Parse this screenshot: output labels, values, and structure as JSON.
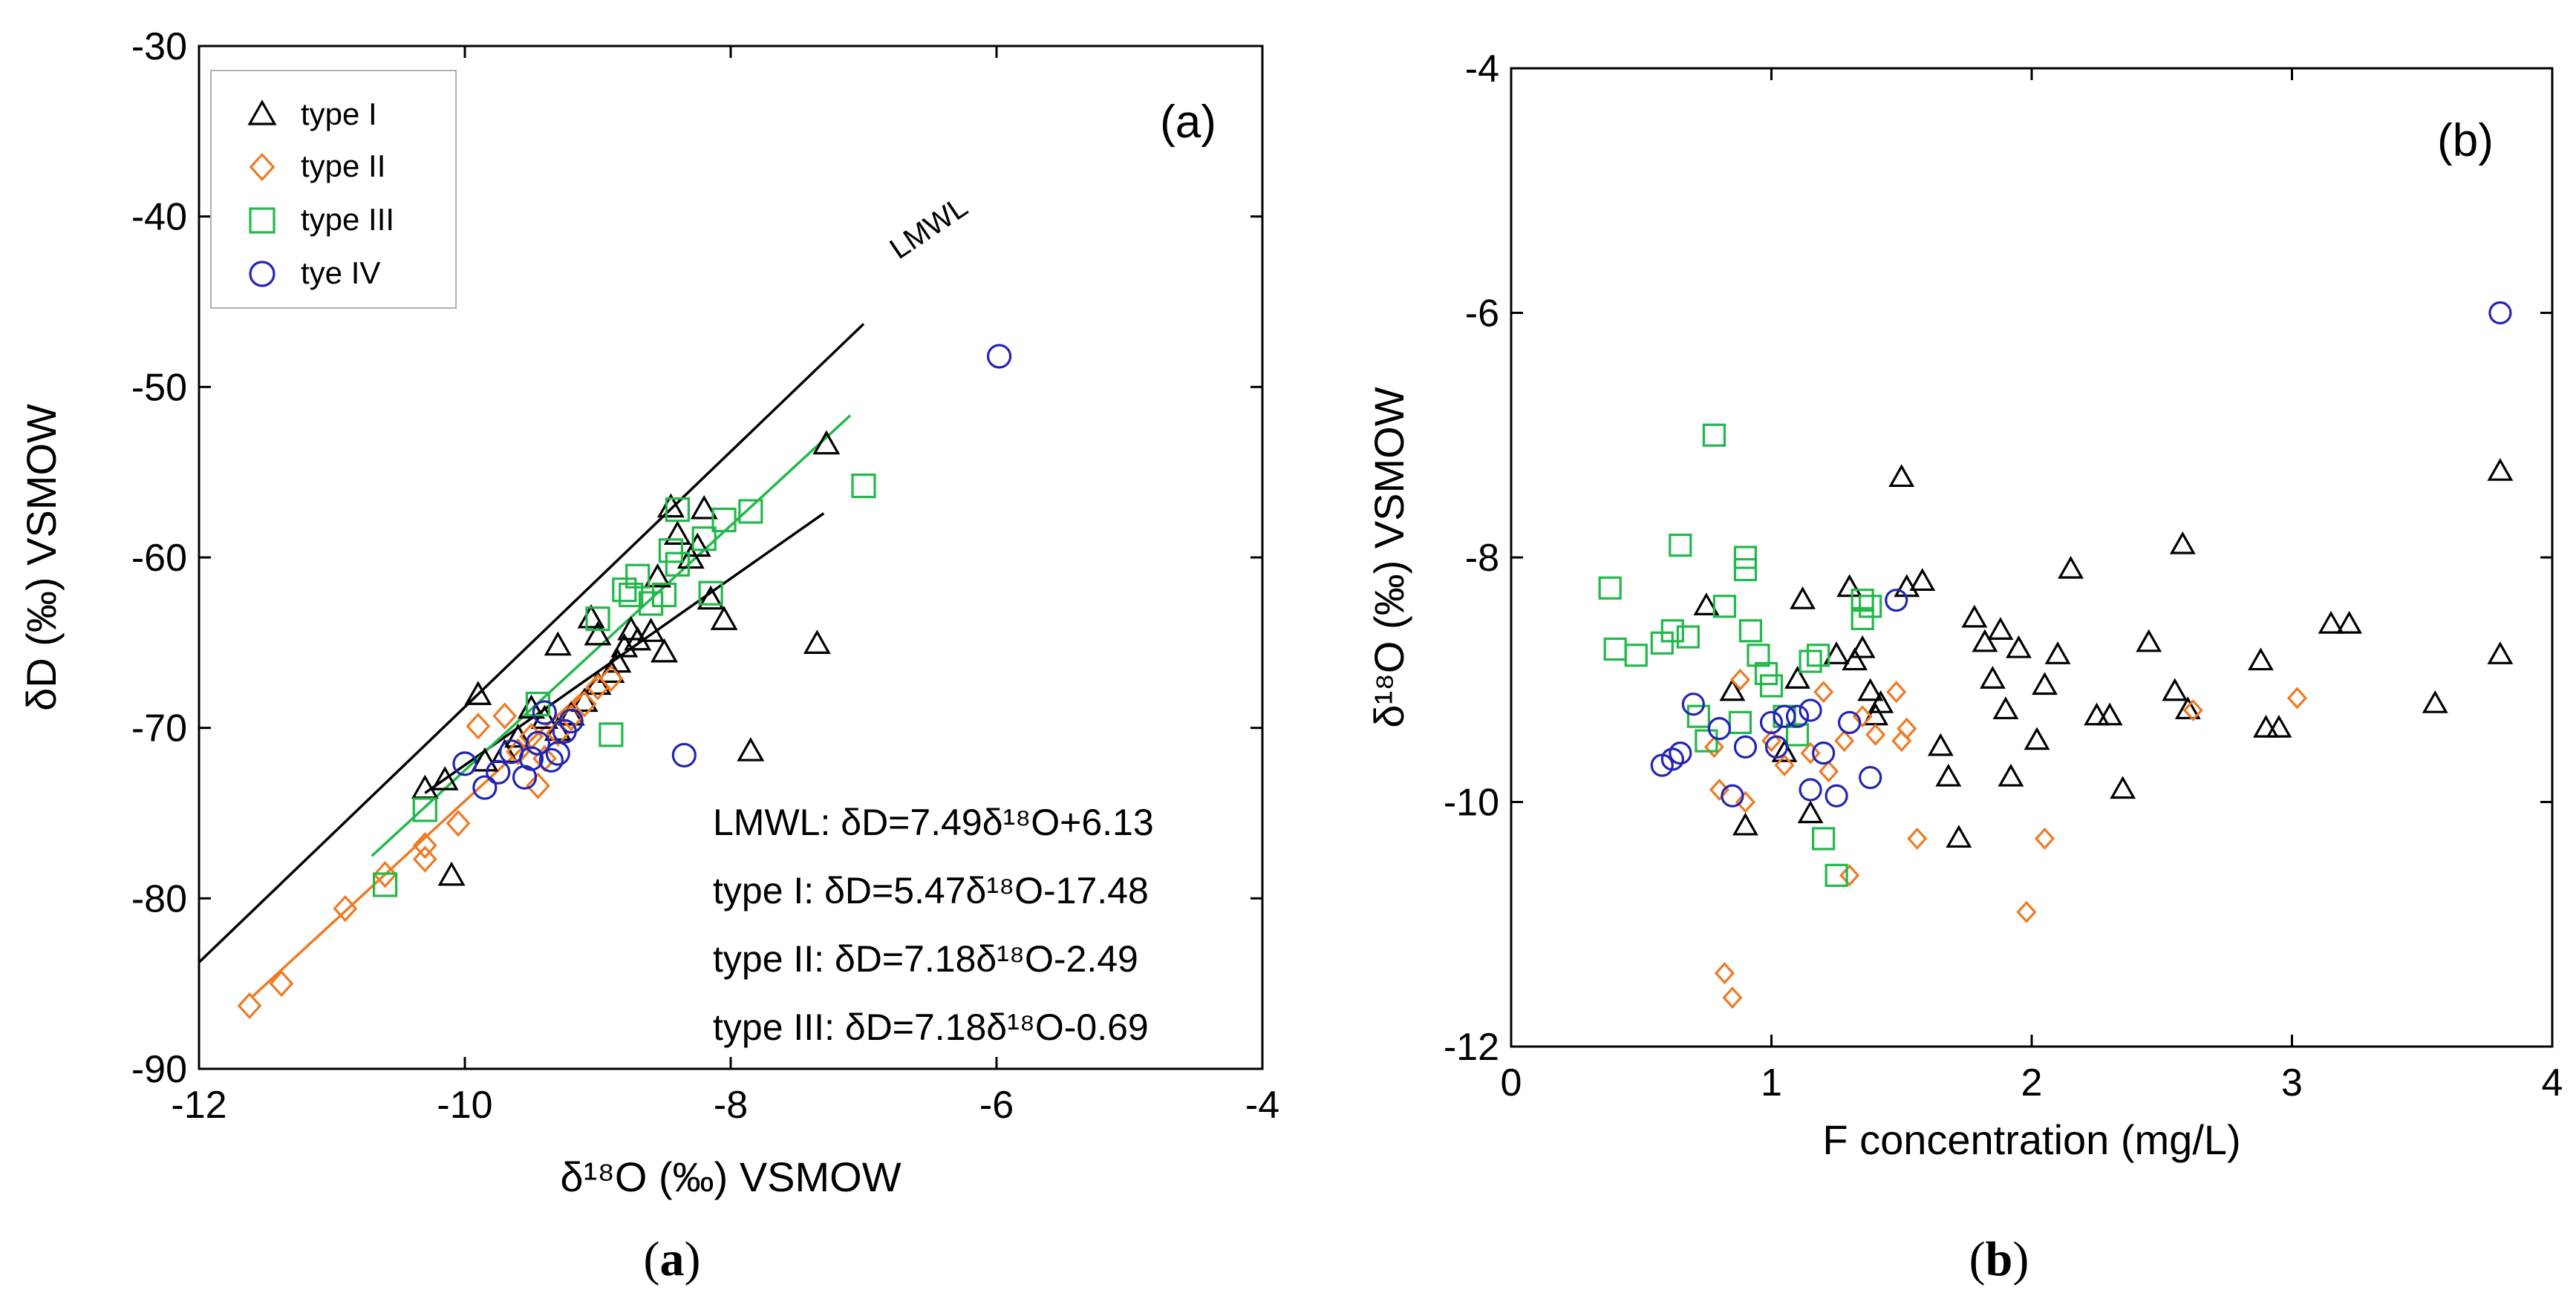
{
  "colors": {
    "type1": "#000000",
    "type2": "#ee7a24",
    "type3": "#22b84a",
    "type4": "#2424b4"
  },
  "chart_data": [
    {
      "type": "scatter",
      "panel": "a",
      "title": "(a)",
      "caption_label": "a",
      "xlabel": "δ¹⁸O (‰) VSMOW",
      "ylabel": "δD (‰) VSMOW",
      "xlim": [
        -12,
        -4
      ],
      "ylim": [
        -90,
        -30
      ],
      "xticks": [
        -12,
        -10,
        -8,
        -6,
        -4
      ],
      "yticks": [
        -90,
        -80,
        -70,
        -60,
        -50,
        -40,
        -30
      ],
      "grid": false,
      "legend_position": "top-left",
      "legend": [
        {
          "name": "type I",
          "marker": "triangle"
        },
        {
          "name": "type II",
          "marker": "diamond"
        },
        {
          "name": "type III",
          "marker": "square"
        },
        {
          "name": "tye IV",
          "marker": "circle"
        }
      ],
      "series": [
        {
          "name": "type I",
          "marker": "triangle",
          "points": [
            [
              -10.3,
              -73.6
            ],
            [
              -10.15,
              -73.1
            ],
            [
              -10.1,
              -78.7
            ],
            [
              -9.9,
              -68.1
            ],
            [
              -9.85,
              -72
            ],
            [
              -9.7,
              -71.5
            ],
            [
              -9.6,
              -70.6
            ],
            [
              -9.5,
              -68.9
            ],
            [
              -9.4,
              -69.5
            ],
            [
              -9.3,
              -70.2
            ],
            [
              -9.2,
              -69.3
            ],
            [
              -9.1,
              -68.5
            ],
            [
              -9.0,
              -67.5
            ],
            [
              -8.9,
              -66.8
            ],
            [
              -8.85,
              -66.2
            ],
            [
              -8.8,
              -65.3
            ],
            [
              -8.75,
              -64.3
            ],
            [
              -8.7,
              -64.9
            ],
            [
              -8.6,
              -64.4
            ],
            [
              -8.55,
              -61.2
            ],
            [
              -8.5,
              -65.6
            ],
            [
              -8.45,
              -57.1
            ],
            [
              -8.4,
              -58.7
            ],
            [
              -8.3,
              -60.1
            ],
            [
              -8.25,
              -59.4
            ],
            [
              -8.2,
              -57.2
            ],
            [
              -8.15,
              -62.5
            ],
            [
              -8.05,
              -63.7
            ],
            [
              -9.05,
              -63.6
            ],
            [
              -9.0,
              -64.6
            ],
            [
              -9.3,
              -65.2
            ],
            [
              -7.85,
              -71.4
            ],
            [
              -7.35,
              -65.1
            ],
            [
              -7.28,
              -53.4
            ]
          ]
        },
        {
          "name": "type II",
          "marker": "diamond",
          "points": [
            [
              -11.62,
              -86.3
            ],
            [
              -11.38,
              -85.0
            ],
            [
              -10.9,
              -80.6
            ],
            [
              -10.6,
              -78.6
            ],
            [
              -10.3,
              -77.7
            ],
            [
              -10.3,
              -76.9
            ],
            [
              -10.05,
              -75.6
            ],
            [
              -9.9,
              -69.9
            ],
            [
              -9.7,
              -69.3
            ],
            [
              -9.6,
              -71.4
            ],
            [
              -9.5,
              -70.5
            ],
            [
              -9.45,
              -73.4
            ],
            [
              -9.4,
              -71.8
            ],
            [
              -9.3,
              -70.3
            ],
            [
              -9.2,
              -69.4
            ],
            [
              -9.1,
              -68.6
            ],
            [
              -9.0,
              -67.6
            ],
            [
              -8.9,
              -67.1
            ]
          ]
        },
        {
          "name": "type III",
          "marker": "square",
          "points": [
            [
              -10.6,
              -79.2
            ],
            [
              -10.3,
              -74.8
            ],
            [
              -9.45,
              -68.6
            ],
            [
              -9.0,
              -63.6
            ],
            [
              -8.9,
              -70.4
            ],
            [
              -8.8,
              -61.9
            ],
            [
              -8.75,
              -62.2
            ],
            [
              -8.7,
              -61.1
            ],
            [
              -8.6,
              -62.7
            ],
            [
              -8.5,
              -62.2
            ],
            [
              -8.45,
              -59.6
            ],
            [
              -8.4,
              -60.4
            ],
            [
              -8.4,
              -57.2
            ],
            [
              -8.2,
              -58.9
            ],
            [
              -8.05,
              -57.8
            ],
            [
              -7.85,
              -57.3
            ],
            [
              -8.15,
              -62.1
            ],
            [
              -7.0,
              -55.8
            ]
          ]
        },
        {
          "name": "tye IV",
          "marker": "circle",
          "points": [
            [
              -10.0,
              -72.1
            ],
            [
              -9.85,
              -73.5
            ],
            [
              -9.75,
              -72.6
            ],
            [
              -9.65,
              -71.4
            ],
            [
              -9.55,
              -72.9
            ],
            [
              -9.5,
              -71.8
            ],
            [
              -9.45,
              -70.9
            ],
            [
              -9.35,
              -71.9
            ],
            [
              -9.3,
              -71.5
            ],
            [
              -9.25,
              -70.2
            ],
            [
              -9.2,
              -69.6
            ],
            [
              -9.4,
              -69.1
            ],
            [
              -8.35,
              -71.6
            ],
            [
              -5.98,
              -48.2
            ]
          ]
        }
      ],
      "lines": [
        {
          "name": "LMWL",
          "label": "LMWL",
          "slope": 7.49,
          "intercept": 6.13,
          "x": [
            -12,
            -7.0
          ],
          "color": "#000000"
        },
        {
          "name": "type I",
          "slope": 5.47,
          "intercept": -17.48,
          "x": [
            -10.3,
            -7.3
          ],
          "color": "#000000"
        },
        {
          "name": "type II",
          "slope": 7.18,
          "intercept": -2.49,
          "x": [
            -11.6,
            -9.0
          ],
          "color": "#ee7a24"
        },
        {
          "name": "type III",
          "slope": 7.18,
          "intercept": -0.69,
          "x": [
            -10.7,
            -7.1
          ],
          "color": "#22b84a"
        }
      ],
      "equations": [
        "LMWL: δD=7.49δ¹⁸O+6.13",
        "type I: δD=5.47δ¹⁸O-17.48",
        "type II: δD=7.18δ¹⁸O-2.49",
        "type III: δD=7.18δ¹⁸O-0.69"
      ]
    },
    {
      "type": "scatter",
      "panel": "b",
      "title": "(b)",
      "caption_label": "b",
      "xlabel": "F concentration (mg/L)",
      "ylabel": "δ¹⁸O (‰) VSMOW",
      "xlim": [
        0,
        4
      ],
      "ylim": [
        -12,
        -4
      ],
      "xticks": [
        0,
        1,
        2,
        3,
        4
      ],
      "yticks": [
        -12,
        -10,
        -8,
        -6,
        -4
      ],
      "grid": false,
      "series": [
        {
          "name": "type I",
          "marker": "triangle",
          "points": [
            [
              0.75,
              -8.4
            ],
            [
              0.85,
              -9.1
            ],
            [
              0.9,
              -10.2
            ],
            [
              1.05,
              -9.6
            ],
            [
              1.1,
              -9.0
            ],
            [
              1.12,
              -8.35
            ],
            [
              1.15,
              -10.1
            ],
            [
              1.25,
              -8.8
            ],
            [
              1.3,
              -8.25
            ],
            [
              1.32,
              -8.85
            ],
            [
              1.35,
              -8.75
            ],
            [
              1.38,
              -9.1
            ],
            [
              1.4,
              -9.3
            ],
            [
              1.42,
              -9.2
            ],
            [
              1.5,
              -7.35
            ],
            [
              1.52,
              -8.25
            ],
            [
              1.58,
              -8.2
            ],
            [
              1.65,
              -9.55
            ],
            [
              1.68,
              -9.8
            ],
            [
              1.72,
              -10.3
            ],
            [
              1.78,
              -8.5
            ],
            [
              1.82,
              -8.7
            ],
            [
              1.85,
              -9.0
            ],
            [
              1.88,
              -8.6
            ],
            [
              1.9,
              -9.25
            ],
            [
              1.92,
              -9.8
            ],
            [
              1.95,
              -8.75
            ],
            [
              2.02,
              -9.5
            ],
            [
              2.05,
              -9.05
            ],
            [
              2.1,
              -8.8
            ],
            [
              2.15,
              -8.1
            ],
            [
              2.25,
              -9.3
            ],
            [
              2.3,
              -9.3
            ],
            [
              2.35,
              -9.9
            ],
            [
              2.45,
              -8.7
            ],
            [
              2.55,
              -9.1
            ],
            [
              2.58,
              -7.9
            ],
            [
              2.6,
              -9.25
            ],
            [
              2.88,
              -8.85
            ],
            [
              2.9,
              -9.4
            ],
            [
              2.95,
              -9.4
            ],
            [
              3.15,
              -8.55
            ],
            [
              3.22,
              -8.55
            ],
            [
              3.55,
              -9.2
            ],
            [
              3.8,
              -7.3
            ],
            [
              3.8,
              -8.8
            ]
          ]
        },
        {
          "name": "type II",
          "marker": "diamond",
          "points": [
            [
              0.78,
              -9.55
            ],
            [
              0.8,
              -9.9
            ],
            [
              0.82,
              -11.4
            ],
            [
              0.85,
              -11.6
            ],
            [
              0.88,
              -9.0
            ],
            [
              0.9,
              -10.0
            ],
            [
              1.0,
              -9.5
            ],
            [
              1.05,
              -9.7
            ],
            [
              1.15,
              -9.6
            ],
            [
              1.2,
              -9.1
            ],
            [
              1.22,
              -9.75
            ],
            [
              1.28,
              -9.5
            ],
            [
              1.3,
              -10.6
            ],
            [
              1.35,
              -9.3
            ],
            [
              1.4,
              -9.45
            ],
            [
              1.48,
              -9.1
            ],
            [
              1.5,
              -9.5
            ],
            [
              1.52,
              -9.4
            ],
            [
              1.56,
              -10.3
            ],
            [
              1.98,
              -10.9
            ],
            [
              2.05,
              -10.3
            ],
            [
              2.62,
              -9.25
            ],
            [
              3.02,
              -9.15
            ]
          ]
        },
        {
          "name": "type III",
          "marker": "square",
          "points": [
            [
              0.38,
              -8.25
            ],
            [
              0.4,
              -8.75
            ],
            [
              0.48,
              -8.8
            ],
            [
              0.58,
              -8.7
            ],
            [
              0.62,
              -8.6
            ],
            [
              0.65,
              -7.9
            ],
            [
              0.68,
              -8.65
            ],
            [
              0.72,
              -9.3
            ],
            [
              0.75,
              -9.5
            ],
            [
              0.78,
              -7.0
            ],
            [
              0.82,
              -8.4
            ],
            [
              0.88,
              -9.35
            ],
            [
              0.9,
              -8.1
            ],
            [
              0.9,
              -8.0
            ],
            [
              0.92,
              -8.6
            ],
            [
              0.95,
              -8.8
            ],
            [
              0.98,
              -8.95
            ],
            [
              1.0,
              -9.05
            ],
            [
              1.05,
              -9.3
            ],
            [
              1.1,
              -9.45
            ],
            [
              1.15,
              -8.85
            ],
            [
              1.18,
              -8.8
            ],
            [
              1.2,
              -10.3
            ],
            [
              1.25,
              -10.6
            ],
            [
              1.35,
              -8.5
            ],
            [
              1.35,
              -8.35
            ],
            [
              1.38,
              -8.4
            ]
          ]
        },
        {
          "name": "tye IV",
          "marker": "circle",
          "points": [
            [
              0.58,
              -9.7
            ],
            [
              0.62,
              -9.65
            ],
            [
              0.65,
              -9.6
            ],
            [
              0.7,
              -9.2
            ],
            [
              0.8,
              -9.4
            ],
            [
              0.85,
              -9.95
            ],
            [
              0.9,
              -9.55
            ],
            [
              1.0,
              -9.35
            ],
            [
              1.02,
              -9.55
            ],
            [
              1.05,
              -9.3
            ],
            [
              1.1,
              -9.3
            ],
            [
              1.15,
              -9.25
            ],
            [
              1.15,
              -9.9
            ],
            [
              1.2,
              -9.6
            ],
            [
              1.25,
              -9.95
            ],
            [
              1.3,
              -9.35
            ],
            [
              1.38,
              -9.8
            ],
            [
              1.48,
              -8.35
            ],
            [
              3.8,
              -6.0
            ]
          ]
        }
      ]
    }
  ]
}
